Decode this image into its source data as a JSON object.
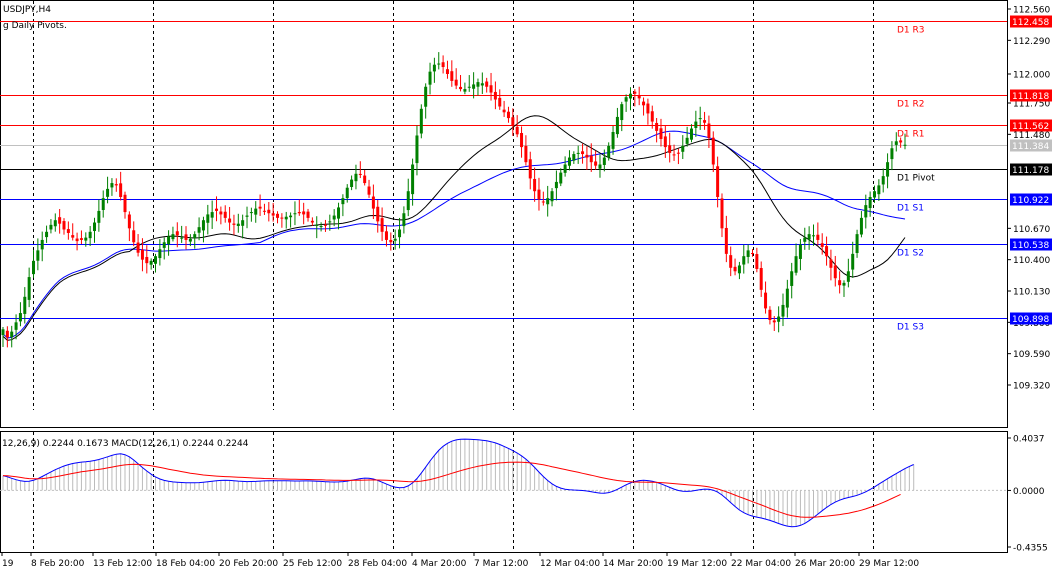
{
  "window": {
    "symbol_timeframe": "USDJPY,H4",
    "indicator_name": "g Daily Pivots."
  },
  "colors": {
    "background": "#ffffff",
    "bull_candle": "#008000",
    "bear_candle": "#ff0000",
    "resistance_line": "#ff0000",
    "support_line": "#0000ff",
    "pivot_line": "#000000",
    "ma_fast": "#000000",
    "ma_slow": "#0000ff",
    "macd_line": "#0000ff",
    "signal_line": "#ff0000",
    "histogram": "#bbbbbb",
    "price_label_bg_red": "#ff0000",
    "price_label_bg_blue": "#0000ff",
    "price_label_bg_black": "#000000",
    "current_price_bg": "#c0c0c0"
  },
  "chart_data": {
    "type": "candlestick",
    "title": "USDJPY,H4",
    "ylim": [
      109.05,
      112.62
    ],
    "price_axis_ticks": [
      "112.560",
      "112.290",
      "112.000",
      "111.750",
      "111.480",
      "110.670",
      "110.400",
      "110.130",
      "109.860",
      "109.590",
      "109.320"
    ],
    "date_axis_labels": [
      "19",
      "8 Feb 20:00",
      "13 Feb 12:00",
      "18 Feb 04:00",
      "20 Feb 20:00",
      "25 Feb 12:00",
      "28 Feb 04:00",
      "4 Mar 20:00",
      "7 Mar 12:00",
      "12 Mar 04:00",
      "14 Mar 20:00",
      "19 Mar 12:00",
      "22 Mar 04:00",
      "26 Mar 20:00",
      "29 Mar 12:00"
    ],
    "pivot_levels": [
      {
        "name": "D1 R3",
        "value": 112.458,
        "label": "112.458",
        "kind": "resistance"
      },
      {
        "name": "D1 R2",
        "value": 111.818,
        "label": "111.818",
        "kind": "resistance"
      },
      {
        "name": "D1 R1",
        "value": 111.562,
        "label": "111.562",
        "kind": "resistance"
      },
      {
        "name": "D1 Pivot",
        "value": 111.178,
        "label": "111.178",
        "kind": "pivot"
      },
      {
        "name": "D1 S1",
        "value": 110.922,
        "label": "110.922",
        "kind": "support"
      },
      {
        "name": "D1 S2",
        "value": 110.538,
        "label": "110.538",
        "kind": "support"
      },
      {
        "name": "D1 S3",
        "value": 109.898,
        "label": "109.898",
        "kind": "support"
      }
    ],
    "current_price": {
      "value": 111.384,
      "label": "111.384"
    },
    "closes": [
      109.8,
      109.73,
      109.78,
      109.86,
      109.94,
      110.08,
      110.25,
      110.39,
      110.48,
      110.57,
      110.64,
      110.7,
      110.74,
      110.71,
      110.66,
      110.63,
      110.59,
      110.56,
      110.57,
      110.59,
      110.64,
      110.72,
      110.82,
      110.93,
      111.01,
      111.06,
      111.04,
      110.94,
      110.81,
      110.67,
      110.55,
      110.46,
      110.4,
      110.37,
      110.39,
      110.43,
      110.49,
      110.55,
      110.6,
      110.62,
      110.61,
      110.59,
      110.57,
      110.58,
      110.62,
      110.68,
      110.74,
      110.79,
      110.81,
      110.82,
      110.79,
      110.76,
      110.72,
      110.7,
      110.71,
      110.74,
      110.78,
      110.81,
      110.84,
      110.84,
      110.82,
      110.8,
      110.78,
      110.76,
      110.76,
      110.77,
      110.78,
      110.8,
      110.8,
      110.79,
      110.76,
      110.72,
      110.7,
      110.69,
      110.7,
      110.73,
      110.78,
      110.85,
      110.93,
      111.02,
      111.09,
      111.14,
      111.13,
      111.06,
      110.96,
      110.84,
      110.73,
      110.64,
      110.57,
      110.55,
      110.58,
      110.66,
      110.8,
      110.99,
      111.22,
      111.47,
      111.7,
      111.89,
      112.02,
      112.08,
      112.09,
      112.06,
      112.0,
      111.94,
      111.9,
      111.87,
      111.87,
      111.89,
      111.91,
      111.93,
      111.92,
      111.89,
      111.84,
      111.78,
      111.72,
      111.67,
      111.62,
      111.56,
      111.48,
      111.37,
      111.24,
      111.1,
      110.99,
      110.92,
      110.9,
      110.93,
      110.99,
      111.07,
      111.15,
      111.22,
      111.28,
      111.31,
      111.32,
      111.31,
      111.28,
      111.24,
      111.21,
      111.22,
      111.28,
      111.38,
      111.5,
      111.63,
      111.74,
      111.8,
      111.83,
      111.83,
      111.79,
      111.73,
      111.66,
      111.59,
      111.51,
      111.44,
      111.37,
      111.32,
      111.3,
      111.32,
      111.38,
      111.45,
      111.53,
      111.59,
      111.62,
      111.58,
      111.45,
      111.22,
      110.94,
      110.67,
      110.45,
      110.33,
      110.3,
      110.35,
      110.43,
      110.48,
      110.45,
      110.32,
      110.14,
      109.98,
      109.88,
      109.86,
      109.91,
      110.01,
      110.15,
      110.3,
      110.43,
      110.53,
      110.59,
      110.62,
      110.61,
      110.57,
      110.51,
      110.43,
      110.33,
      110.24,
      110.18,
      110.2,
      110.3,
      110.45,
      110.62,
      110.76,
      110.87,
      110.94,
      110.99,
      111.04,
      111.12,
      111.24,
      111.36,
      111.42,
      111.41,
      111.39
    ]
  },
  "macd_panel": {
    "label": "12,26,9) 0.2244 0.1673 MACD(12,26,1) 0.2244 0.2244",
    "ticks": [
      "0.4037",
      "0.0000",
      "-0.4355"
    ],
    "ylim": [
      -0.4355,
      0.4037
    ],
    "macd": [
      0.1145,
      0.1048,
      0.0936,
      0.083,
      0.0742,
      0.0693,
      0.0701,
      0.0777,
      0.0907,
      0.1071,
      0.1247,
      0.1425,
      0.1593,
      0.1746,
      0.1878,
      0.1988,
      0.2074,
      0.2139,
      0.218,
      0.2214,
      0.2251,
      0.2306,
      0.238,
      0.2479,
      0.2591,
      0.2699,
      0.2788,
      0.2817,
      0.2754,
      0.2586,
      0.2342,
      0.2056,
      0.1769,
      0.1495,
      0.1253,
      0.1042,
      0.0882,
      0.077,
      0.0703,
      0.066,
      0.0633,
      0.0614,
      0.0598,
      0.0585,
      0.0587,
      0.0603,
      0.0632,
      0.0673,
      0.071,
      0.0747,
      0.0772,
      0.078,
      0.0771,
      0.0749,
      0.072,
      0.0695,
      0.0684,
      0.0686,
      0.0698,
      0.0717,
      0.0733,
      0.0744,
      0.075,
      0.075,
      0.0746,
      0.0738,
      0.0733,
      0.0729,
      0.0729,
      0.0731,
      0.0733,
      0.0727,
      0.0711,
      0.0692,
      0.0672,
      0.0657,
      0.0651,
      0.0656,
      0.0679,
      0.072,
      0.0777,
      0.0845,
      0.0908,
      0.0947,
      0.0939,
      0.0878,
      0.0771,
      0.0634,
      0.049,
      0.0356,
      0.0254,
      0.0201,
      0.0226,
      0.0349,
      0.0582,
      0.0921,
      0.1337,
      0.1799,
      0.2263,
      0.2701,
      0.3084,
      0.3396,
      0.3632,
      0.3791,
      0.3888,
      0.3935,
      0.3949,
      0.3936,
      0.3918,
      0.3899,
      0.3866,
      0.3821,
      0.3753,
      0.3657,
      0.3534,
      0.3393,
      0.3237,
      0.3069,
      0.2882,
      0.2665,
      0.2409,
      0.2107,
      0.177,
      0.1414,
      0.1071,
      0.0763,
      0.0507,
      0.0312,
      0.0179,
      0.0097,
      0.0055,
      0.0033,
      0.0015,
      -0.0008,
      -0.0046,
      -0.0098,
      -0.0156,
      -0.0203,
      -0.0213,
      -0.0168,
      -0.0064,
      0.0085,
      0.026,
      0.0432,
      0.0579,
      0.0689,
      0.0758,
      0.0781,
      0.0761,
      0.0705,
      0.0619,
      0.0507,
      0.0375,
      0.0233,
      0.0099,
      -0.0004,
      -0.0065,
      -0.0078,
      -0.0049,
      0.0006,
      0.0064,
      0.0102,
      0.0093,
      0.0018,
      -0.0132,
      -0.0352,
      -0.0629,
      -0.0934,
      -0.1236,
      -0.1505,
      -0.1716,
      -0.1871,
      -0.1975,
      -0.2052,
      -0.2124,
      -0.2208,
      -0.2307,
      -0.2424,
      -0.2545,
      -0.2658,
      -0.2747,
      -0.2793,
      -0.2778,
      -0.2693,
      -0.254,
      -0.2331,
      -0.2084,
      -0.1821,
      -0.1559,
      -0.1309,
      -0.1086,
      -0.0898,
      -0.0748,
      -0.0631,
      -0.0542,
      -0.0464,
      -0.0373,
      -0.0254,
      -0.0105,
      0.0072,
      0.0272,
      0.0484,
      0.0697,
      0.0905,
      0.1102,
      0.1294,
      0.1487,
      0.1679,
      0.1851,
      0.1996
    ],
    "signal": [
      0.1145,
      0.1129,
      0.1097,
      0.1053,
      0.1003,
      0.0951,
      0.0911,
      0.0892,
      0.0894,
      0.0913,
      0.0949,
      0.0995,
      0.1051,
      0.1113,
      0.1179,
      0.1246,
      0.1311,
      0.1375,
      0.1432,
      0.1482,
      0.1527,
      0.1573,
      0.1621,
      0.1675,
      0.1735,
      0.1797,
      0.1859,
      0.1918,
      0.1966,
      0.1997,
      0.2009,
      0.2002,
      0.1979,
      0.1942,
      0.1893,
      0.1835,
      0.177,
      0.1705,
      0.1638,
      0.1573,
      0.151,
      0.1448,
      0.1388,
      0.133,
      0.1278,
      0.1231,
      0.119,
      0.1155,
      0.1127,
      0.1103,
      0.1084,
      0.1068,
      0.1052,
      0.1036,
      0.102,
      0.1003,
      0.0985,
      0.0967,
      0.095,
      0.0935,
      0.0922,
      0.091,
      0.09,
      0.0891,
      0.0883,
      0.0875,
      0.0867,
      0.086,
      0.0853,
      0.0846,
      0.084,
      0.0833,
      0.0825,
      0.0816,
      0.0806,
      0.0796,
      0.0786,
      0.0777,
      0.0771,
      0.077,
      0.0772,
      0.0779,
      0.0788,
      0.0798,
      0.0805,
      0.0808,
      0.0806,
      0.0798,
      0.0785,
      0.0766,
      0.0744,
      0.0719,
      0.0696,
      0.068,
      0.0676,
      0.069,
      0.0721,
      0.0771,
      0.0838,
      0.0919,
      0.1011,
      0.1111,
      0.1215,
      0.132,
      0.1423,
      0.1521,
      0.1615,
      0.1702,
      0.1782,
      0.1856,
      0.1923,
      0.1983,
      0.2036,
      0.2081,
      0.2117,
      0.2145,
      0.2165,
      0.2176,
      0.2178,
      0.2171,
      0.2153,
      0.2122,
      0.2081,
      0.203,
      0.197,
      0.1903,
      0.1831,
      0.1757,
      0.1683,
      0.161,
      0.1537,
      0.1465,
      0.1393,
      0.132,
      0.1246,
      0.1171,
      0.1096,
      0.1021,
      0.0949,
      0.0882,
      0.0821,
      0.0768,
      0.0724,
      0.069,
      0.0667,
      0.0653,
      0.0645,
      0.064,
      0.0636,
      0.0629,
      0.0619,
      0.0603,
      0.0583,
      0.0557,
      0.0527,
      0.0497,
      0.0467,
      0.0439,
      0.0412,
      0.0386,
      0.0358,
      0.0321,
      0.027,
      0.0202,
      0.0116,
      0.0013,
      -0.0103,
      -0.0228,
      -0.0357,
      -0.0487,
      -0.0614,
      -0.074,
      -0.0865,
      -0.099,
      -0.1117,
      -0.1248,
      -0.1382,
      -0.1514,
      -0.164,
      -0.1756,
      -0.1857,
      -0.194,
      -0.2002,
      -0.2043,
      -0.2064,
      -0.2068,
      -0.2058,
      -0.2037,
      -0.2009,
      -0.1976,
      -0.1939,
      -0.19,
      -0.1857,
      -0.1808,
      -0.1752,
      -0.1686,
      -0.1609,
      -0.1521,
      -0.1421,
      -0.131,
      -0.1189,
      -0.106,
      -0.0922,
      -0.0775,
      -0.062,
      -0.0463,
      -0.0305
    ]
  }
}
